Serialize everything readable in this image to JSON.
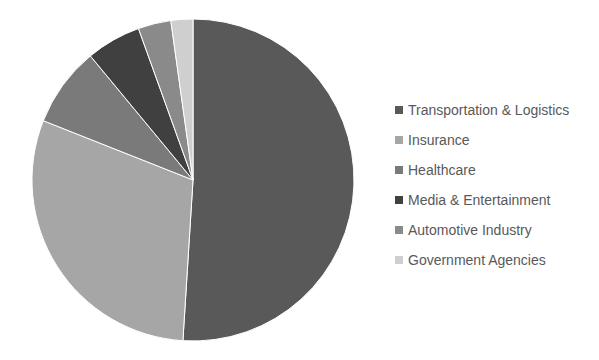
{
  "chart_data": {
    "type": "pie",
    "categories": [
      "Transportation & Logistics",
      "Insurance",
      "Healthcare",
      "Media & Entertainment",
      "Automotive Industry",
      "Government Agencies"
    ],
    "values": [
      51,
      30,
      8,
      5.5,
      3.3,
      2.2
    ],
    "colors": [
      "#595959",
      "#a6a6a6",
      "#7a7a7a",
      "#404040",
      "#8a8a8a",
      "#cfcfcf"
    ],
    "legend": "right"
  }
}
